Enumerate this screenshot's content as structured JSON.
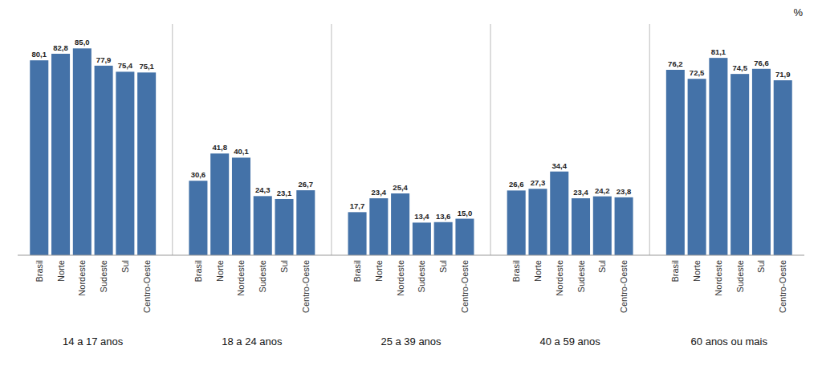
{
  "chart_data": [
    {
      "type": "bar",
      "title": "14 a 17 anos",
      "categories": [
        "Brasil",
        "Norte",
        "Nordeste",
        "Sudeste",
        "Sul",
        "Centro-Oeste"
      ],
      "values": [
        80.1,
        82.8,
        85.0,
        77.9,
        75.4,
        75.1
      ],
      "value_labels": [
        "80,1",
        "82,8",
        "85,0",
        "77,9",
        "75,4",
        "75,1"
      ],
      "color": "#4472a8",
      "ylim": [
        0,
        95
      ],
      "data_labels": true,
      "tick_labels": "x",
      "grid": false
    },
    {
      "type": "bar",
      "title": "18 a 24 anos",
      "categories": [
        "Brasil",
        "Norte",
        "Nordeste",
        "Sudeste",
        "Sul",
        "Centro-Oeste"
      ],
      "values": [
        30.6,
        41.8,
        40.1,
        24.3,
        23.1,
        26.7
      ],
      "value_labels": [
        "30,6",
        "41,8",
        "40,1",
        "24,3",
        "23,1",
        "26,7"
      ],
      "color": "#4472a8",
      "ylim": [
        0,
        95
      ],
      "data_labels": true,
      "tick_labels": "x",
      "grid": false
    },
    {
      "type": "bar",
      "title": "25 a 39 anos",
      "categories": [
        "Brasil",
        "Norte",
        "Nordeste",
        "Sudeste",
        "Sul",
        "Centro-Oeste"
      ],
      "values": [
        17.7,
        23.4,
        25.4,
        13.4,
        13.6,
        15.0
      ],
      "value_labels": [
        "17,7",
        "23,4",
        "25,4",
        "13,4",
        "13,6",
        "15,0"
      ],
      "color": "#4472a8",
      "ylim": [
        0,
        95
      ],
      "data_labels": true,
      "tick_labels": "x",
      "grid": false
    },
    {
      "type": "bar",
      "title": "40 a 59 anos",
      "categories": [
        "Brasil",
        "Norte",
        "Nordeste",
        "Sudeste",
        "Sul",
        "Centro-Oeste"
      ],
      "values": [
        26.6,
        27.3,
        34.4,
        23.4,
        24.2,
        23.8
      ],
      "value_labels": [
        "26,6",
        "27,3",
        "34,4",
        "23,4",
        "24,2",
        "23,8"
      ],
      "color": "#4472a8",
      "ylim": [
        0,
        95
      ],
      "data_labels": true,
      "tick_labels": "x",
      "grid": false
    },
    {
      "type": "bar",
      "title": "60 anos ou mais",
      "categories": [
        "Brasil",
        "Norte",
        "Nordeste",
        "Sudeste",
        "Sul",
        "Centro-Oeste"
      ],
      "values": [
        76.2,
        72.5,
        81.1,
        74.5,
        76.6,
        71.9
      ],
      "value_labels": [
        "76,2",
        "72,5",
        "81,1",
        "74,5",
        "76,6",
        "71,9"
      ],
      "color": "#4472a8",
      "ylim": [
        0,
        95
      ],
      "data_labels": true,
      "tick_labels": "x",
      "grid": false,
      "annotations": [
        "%"
      ]
    }
  ]
}
